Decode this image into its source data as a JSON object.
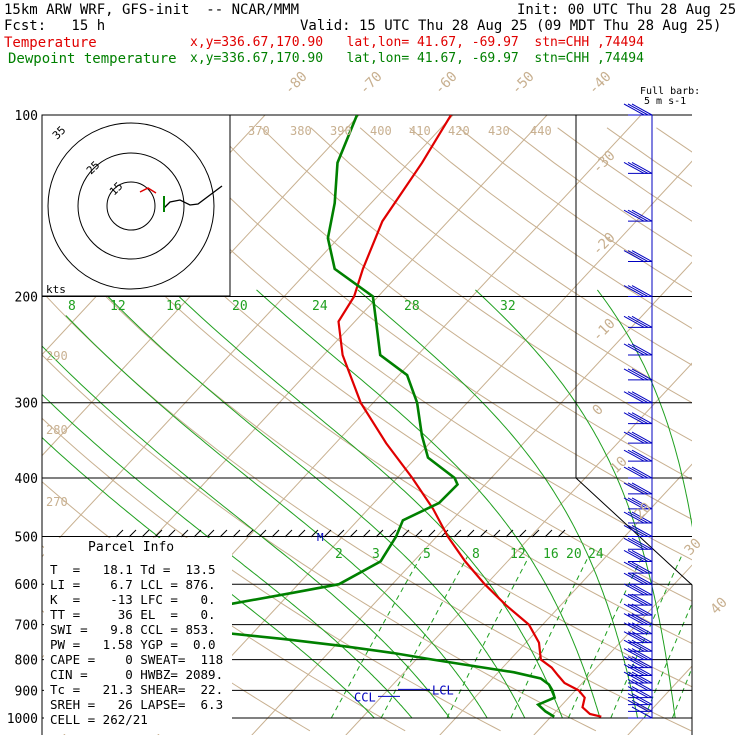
{
  "header": {
    "model_line": "15km ARW WRF, GFS-init  -- NCAR/MMM",
    "fcst_label": "Fcst:   15 h",
    "init_line": "Init: 00 UTC Thu 28 Aug 25",
    "valid_line": "Valid: 15 UTC Thu 28 Aug 25 (09 MDT Thu 28 Aug 25)",
    "temp_name": "Temperature",
    "temp_info": "x,y=336.67,170.90   lat,lon= 41.67, -69.97  stn=CHH ,74494",
    "dew_name": "Dewpoint temperature",
    "dew_info": "x,y=336.67,170.90   lat,lon= 41.67, -69.97  stn=CHH ,74494"
  },
  "barb_legend": {
    "line1": "Full barb:",
    "line2": "5 m s-1"
  },
  "parcel_info": {
    "title": "Parcel Info",
    "rows": [
      "T  =   18.1 Td =  13.5",
      "LI =    6.7 LCL = 876.",
      "K  =    -13 LFC =   0.",
      "TT =     36 EL  =   0.",
      "SWI =   9.8 CCL = 853.",
      "PW =   1.58 YGP =  0.0",
      "CAPE =    0 SWEAT=  118",
      "CIN =     0 HWBZ= 2089.",
      "Tc =   21.3 SHEAR=  22.",
      "SREH =   26 LAPSE=  6.3",
      "CELL = 262/21"
    ]
  },
  "hodograph": {
    "units": "kts",
    "ring_labels": [
      "15",
      "25",
      "35"
    ]
  },
  "markers": {
    "lcl": "LCL",
    "ccl": "CCL",
    "m": "M"
  },
  "chart_data": {
    "type": "line",
    "title": "",
    "xlabel": "",
    "ylabel": "",
    "pressure_levels_hPa": [
      100,
      200,
      300,
      400,
      500,
      600,
      700,
      800,
      900,
      1000
    ],
    "pressure_labels": [
      "100",
      "200",
      "300",
      "400",
      "500",
      "600",
      "700",
      "800",
      "900",
      "1000"
    ],
    "isotherm_labels": [
      "-80",
      "-70",
      "-60",
      "-50",
      "-40",
      "-30",
      "-20",
      "-10",
      "0",
      "10",
      "20",
      "30",
      "40"
    ],
    "theta_labels": [
      "370",
      "380",
      "390",
      "400",
      "410",
      "420",
      "430",
      "440",
      "290",
      "280",
      "270"
    ],
    "moist_adiabat_labels": [
      "8",
      "12",
      "16",
      "20",
      "24",
      "28",
      "32"
    ],
    "mixing_ratio_labels": [
      "2",
      "3",
      "5",
      "8",
      "12",
      "16",
      "20",
      "24"
    ],
    "series": [
      {
        "name": "Temperature",
        "color": "#e00000",
        "p": [
          995,
          985,
          960,
          925,
          900,
          875,
          850,
          825,
          800,
          775,
          750,
          700,
          650,
          600,
          550,
          500,
          450,
          400,
          350,
          300,
          250,
          220,
          200,
          180,
          150,
          120,
          100
        ],
        "t": [
          20,
          18.5,
          17,
          16.2,
          14.8,
          12.5,
          11,
          9.5,
          7.5,
          6.5,
          5.5,
          2.5,
          -2,
          -6.5,
          -11,
          -15.5,
          -20,
          -25.5,
          -32,
          -39,
          -46,
          -50,
          -51,
          -53,
          -56,
          -58,
          -60
        ]
      },
      {
        "name": "Dewpoint temperature",
        "color": "#008000",
        "p": [
          995,
          975,
          950,
          925,
          900,
          880,
          860,
          840,
          820,
          800,
          780,
          760,
          740,
          720,
          705,
          690,
          670,
          650,
          620,
          600,
          550,
          500,
          470,
          440,
          410,
          400,
          370,
          340,
          300,
          270,
          250,
          220,
          200,
          180,
          160,
          140,
          120,
          100
        ],
        "td": [
          15,
          13.5,
          12,
          13,
          12,
          11,
          9.5,
          6,
          1,
          -4,
          -9,
          -15,
          -22,
          -30,
          -38,
          -42,
          -38,
          -32,
          -26,
          -22,
          -20,
          -21,
          -22,
          -20,
          -20,
          -21,
          -26,
          -29,
          -33,
          -37,
          -42,
          -46,
          -49,
          -56,
          -60,
          -63,
          -67,
          -70
        ]
      }
    ],
    "wind_profile": {
      "p": [
        1000,
        975,
        950,
        925,
        900,
        875,
        850,
        825,
        800,
        775,
        750,
        725,
        700,
        675,
        650,
        625,
        600,
        575,
        550,
        525,
        500,
        475,
        450,
        425,
        400,
        375,
        350,
        325,
        300,
        275,
        250,
        225,
        200,
        175,
        150,
        125,
        100
      ],
      "dir_deg": [
        250,
        255,
        260,
        260,
        262,
        265,
        265,
        268,
        270,
        270,
        272,
        275,
        275,
        275,
        278,
        280,
        280,
        280,
        282,
        282,
        285,
        285,
        285,
        285,
        285,
        285,
        285,
        285,
        285,
        285,
        285,
        285,
        285,
        285,
        285,
        285,
        285
      ],
      "speed_ms": [
        6,
        8,
        10,
        11,
        12,
        13,
        13,
        14,
        14,
        14,
        15,
        15,
        15,
        15,
        16,
        16,
        16,
        16,
        16,
        17,
        17,
        17,
        17,
        17,
        17,
        17,
        17,
        17,
        17,
        17,
        17,
        17,
        17,
        17,
        17,
        17,
        17
      ]
    }
  }
}
